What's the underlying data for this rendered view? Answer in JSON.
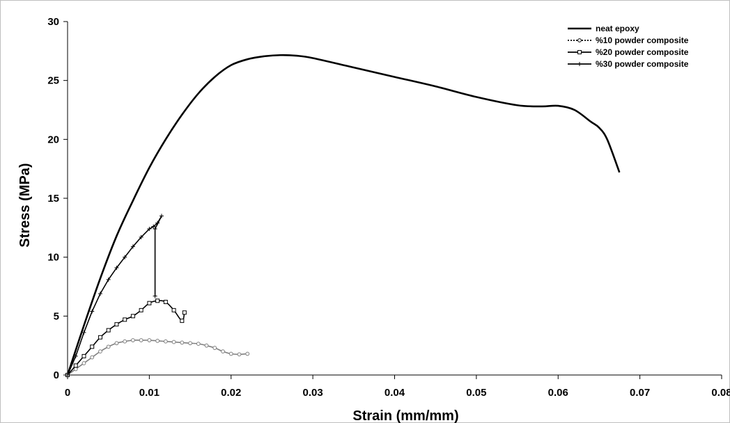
{
  "chart_data": {
    "type": "line",
    "title": "",
    "xlabel": "Strain (mm/mm)",
    "ylabel": "Stress (MPa)",
    "xlim": [
      0,
      0.08
    ],
    "ylim": [
      0,
      30
    ],
    "x_ticks": [
      "0",
      "0.01",
      "0.02",
      "0.03",
      "0.04",
      "0.05",
      "0.06",
      "0.07",
      "0.08"
    ],
    "y_ticks": [
      "0",
      "5",
      "10",
      "15",
      "20",
      "25",
      "30"
    ],
    "grid": false,
    "legend_position": "top-right",
    "series": [
      {
        "name": "neat epoxy",
        "marker": "none",
        "color": "#000000",
        "x": [
          0,
          0.002,
          0.004,
          0.006,
          0.008,
          0.01,
          0.012,
          0.014,
          0.016,
          0.018,
          0.02,
          0.022,
          0.024,
          0.026,
          0.028,
          0.03,
          0.035,
          0.04,
          0.045,
          0.05,
          0.055,
          0.058,
          0.06,
          0.062,
          0.064,
          0.065,
          0.066,
          0.0675
        ],
        "y": [
          0,
          4.2,
          8.2,
          11.8,
          14.8,
          17.6,
          20.0,
          22.1,
          23.9,
          25.3,
          26.3,
          26.8,
          27.05,
          27.15,
          27.1,
          26.9,
          26.1,
          25.3,
          24.5,
          23.6,
          22.9,
          22.8,
          22.85,
          22.5,
          21.5,
          21.0,
          20.0,
          17.2
        ]
      },
      {
        "name": "%10 powder composite",
        "marker": "circle",
        "color": "#7f7f7f",
        "x": [
          0,
          0.001,
          0.002,
          0.003,
          0.004,
          0.005,
          0.006,
          0.007,
          0.008,
          0.009,
          0.01,
          0.011,
          0.012,
          0.013,
          0.014,
          0.015,
          0.016,
          0.017,
          0.018,
          0.019,
          0.02,
          0.021,
          0.022
        ],
        "y": [
          0,
          0.5,
          1.0,
          1.5,
          2.0,
          2.4,
          2.7,
          2.85,
          2.95,
          2.95,
          2.95,
          2.9,
          2.85,
          2.8,
          2.75,
          2.7,
          2.65,
          2.5,
          2.3,
          2.0,
          1.8,
          1.75,
          1.8
        ]
      },
      {
        "name": "%20 powder composite",
        "marker": "square",
        "color": "#000000",
        "x": [
          0,
          0.001,
          0.002,
          0.003,
          0.004,
          0.005,
          0.006,
          0.007,
          0.008,
          0.009,
          0.01,
          0.011,
          0.012,
          0.013,
          0.014,
          0.0143
        ],
        "y": [
          0,
          0.8,
          1.6,
          2.4,
          3.2,
          3.8,
          4.3,
          4.7,
          5.0,
          5.5,
          6.1,
          6.3,
          6.2,
          5.5,
          4.6,
          5.3
        ]
      },
      {
        "name": "%30 powder composite",
        "marker": "plus",
        "color": "#000000",
        "x": [
          0,
          0.001,
          0.002,
          0.003,
          0.004,
          0.005,
          0.006,
          0.007,
          0.008,
          0.009,
          0.01,
          0.0105,
          0.011,
          0.0115,
          0.0107,
          0.0107
        ],
        "y": [
          0,
          1.6,
          3.6,
          5.4,
          6.9,
          8.1,
          9.1,
          10.0,
          10.9,
          11.7,
          12.4,
          12.6,
          12.9,
          13.5,
          12.4,
          6.7
        ]
      }
    ]
  }
}
